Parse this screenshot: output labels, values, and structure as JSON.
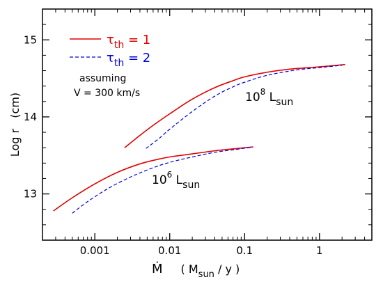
{
  "chart_data": {
    "type": "line",
    "xscale": "log",
    "xlim": [
      0.0002,
      5
    ],
    "ylim": [
      12.4,
      15.4
    ],
    "x_ticks": [
      0.001,
      0.01,
      0.1,
      1
    ],
    "x_tick_labels": [
      "0.001",
      "0.01",
      "0.1",
      "1"
    ],
    "y_ticks": [
      13,
      14,
      15
    ],
    "y_tick_labels": [
      "13",
      "14",
      "15"
    ],
    "xlabel": {
      "main": "Ṁ",
      "unit_open": "( M",
      "unit_sub": "sun",
      "unit_close": " / y )"
    },
    "ylabel": "Log r   (cm)",
    "legend": {
      "placement": "top-left",
      "entries": [
        {
          "symbol": "τ",
          "sub": "th",
          "rest": " = 1",
          "color": "#e00000",
          "style": "solid"
        },
        {
          "symbol": "τ",
          "sub": "th",
          "rest": " = 2",
          "color": "#0000dd",
          "style": "dashed"
        }
      ]
    },
    "annotations": {
      "assumption_line1": "assuming",
      "assumption_line2": "V = 300 km/s",
      "label_high": {
        "base": "10",
        "exp": "8",
        "unit": " L",
        "sub": "sun"
      },
      "label_low": {
        "base": "10",
        "exp": "6",
        "unit": " L",
        "sub": "sun"
      }
    },
    "series": [
      {
        "group": "1e8",
        "style": "solid",
        "color": "#e00000",
        "points": [
          [
            0.0025,
            13.6
          ],
          [
            0.004,
            13.76
          ],
          [
            0.006,
            13.89
          ],
          [
            0.01,
            14.04
          ],
          [
            0.02,
            14.23
          ],
          [
            0.04,
            14.38
          ],
          [
            0.07,
            14.47
          ],
          [
            0.1,
            14.52
          ],
          [
            0.2,
            14.58
          ],
          [
            0.4,
            14.62
          ],
          [
            1,
            14.65
          ],
          [
            2.2,
            14.68
          ]
        ]
      },
      {
        "group": "1e8",
        "style": "dashed",
        "color": "#0000dd",
        "points": [
          [
            0.0048,
            13.59
          ],
          [
            0.007,
            13.71
          ],
          [
            0.01,
            13.84
          ],
          [
            0.02,
            14.07
          ],
          [
            0.04,
            14.27
          ],
          [
            0.07,
            14.39
          ],
          [
            0.1,
            14.45
          ],
          [
            0.2,
            14.54
          ],
          [
            0.5,
            14.61
          ],
          [
            1,
            14.64
          ],
          [
            2,
            14.67
          ]
        ]
      },
      {
        "group": "1e6",
        "style": "solid",
        "color": "#e00000",
        "points": [
          [
            0.00028,
            12.78
          ],
          [
            0.0005,
            12.95
          ],
          [
            0.001,
            13.13
          ],
          [
            0.002,
            13.28
          ],
          [
            0.004,
            13.39
          ],
          [
            0.007,
            13.45
          ],
          [
            0.01,
            13.48
          ],
          [
            0.02,
            13.52
          ],
          [
            0.04,
            13.56
          ],
          [
            0.08,
            13.59
          ],
          [
            0.13,
            13.61
          ]
        ]
      },
      {
        "group": "1e6",
        "style": "dashed",
        "color": "#0000dd",
        "points": [
          [
            0.0005,
            12.75
          ],
          [
            0.0008,
            12.9
          ],
          [
            0.0015,
            13.07
          ],
          [
            0.003,
            13.22
          ],
          [
            0.006,
            13.34
          ],
          [
            0.01,
            13.41
          ],
          [
            0.02,
            13.48
          ],
          [
            0.04,
            13.54
          ],
          [
            0.08,
            13.58
          ],
          [
            0.13,
            13.61
          ]
        ]
      }
    ]
  }
}
